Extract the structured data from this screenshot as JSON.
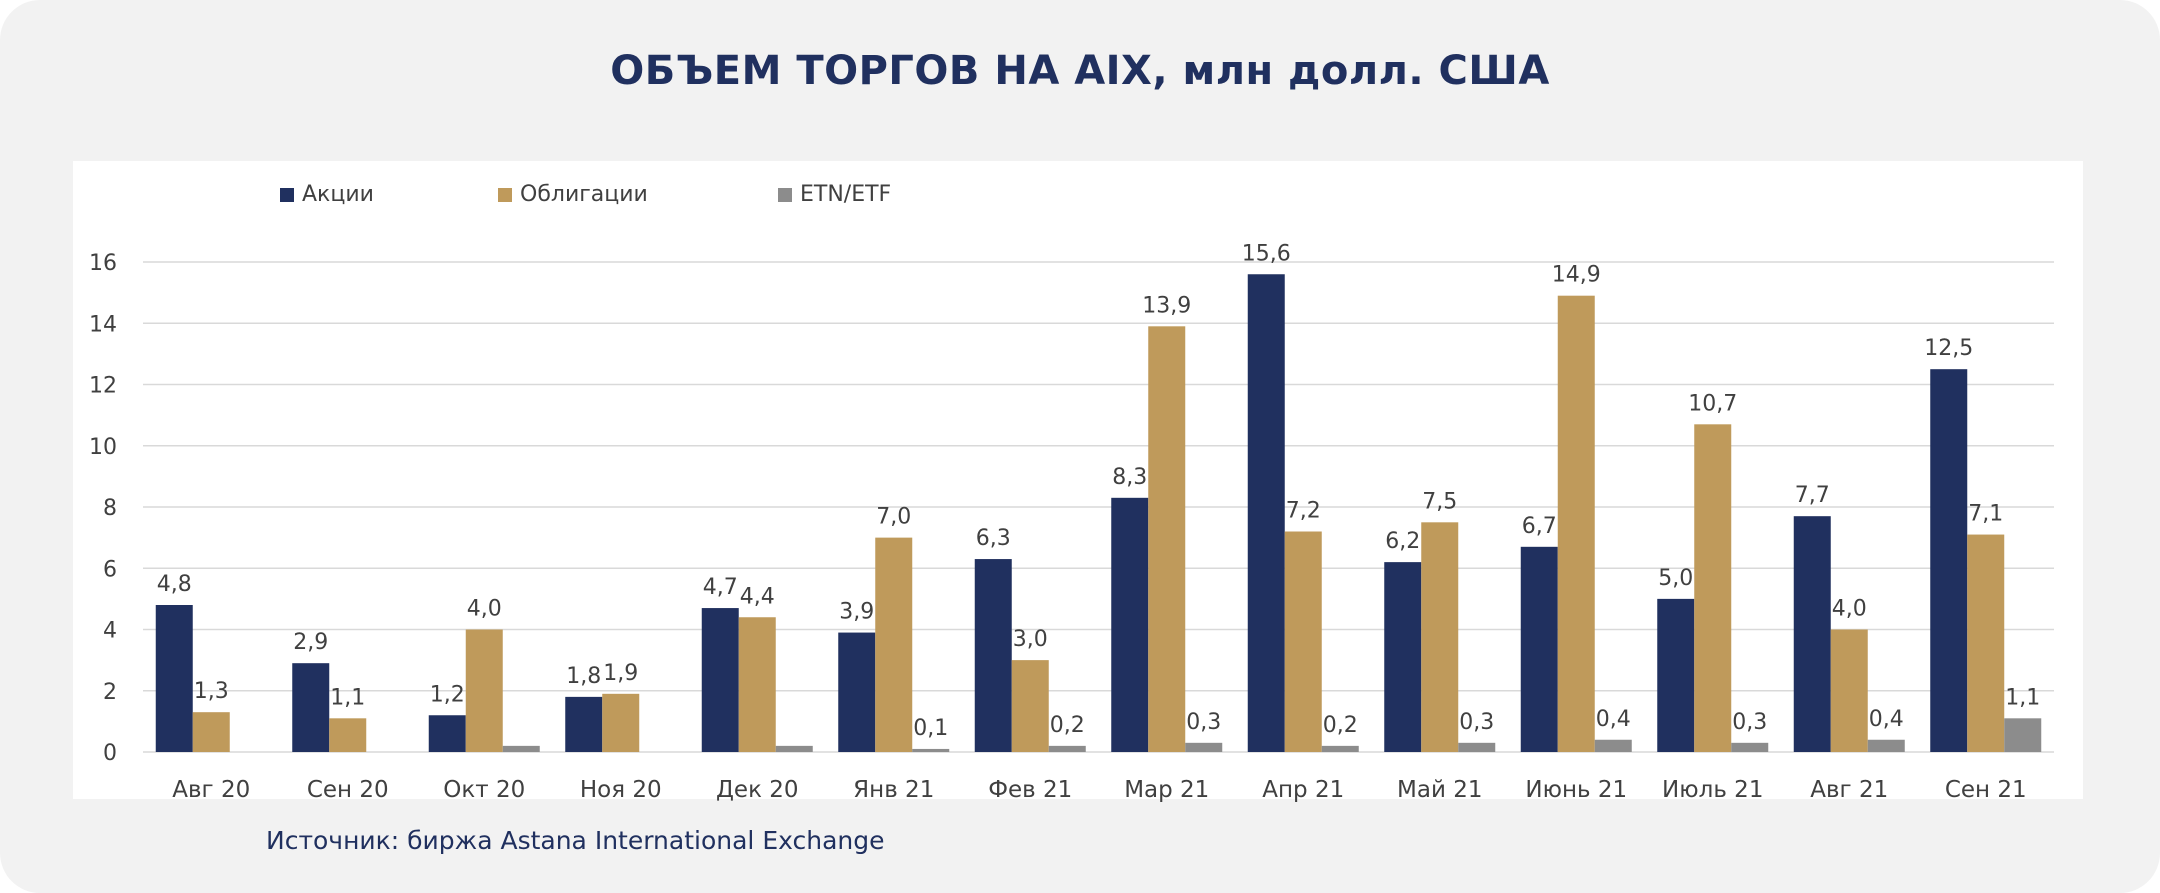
{
  "title": "ОБЪЕМ ТОРГОВ НА AIX,  млн долл. США",
  "source": "Источник: биржа Astana International Exchange",
  "colors": {
    "background": "#f2f2f2",
    "panel": "#ffffff",
    "title": "#20305f",
    "series_colors": [
      "#20305f",
      "#bf9a5b",
      "#8c8c8c"
    ],
    "grid": "#d9d9d9",
    "text": "#404040"
  },
  "chart_data": {
    "type": "bar",
    "categories": [
      "Авг 20",
      "Сен 20",
      "Окт 20",
      "Ноя 20",
      "Дек 20",
      "Янв 21",
      "Фев 21",
      "Мар 21",
      "Апр 21",
      "Май 21",
      "Июнь 21",
      "Июль 21",
      "Авг 21",
      "Сен 21"
    ],
    "series": [
      {
        "name": "Акции",
        "values": [
          4.8,
          2.9,
          1.2,
          1.8,
          4.7,
          3.9,
          6.3,
          8.3,
          15.6,
          6.2,
          6.7,
          5.0,
          7.7,
          12.5
        ],
        "labels": [
          "4,8",
          "2,9",
          "1,2",
          "1,8",
          "4,7",
          "3,9",
          "6,3",
          "8,3",
          "15,6",
          "6,2",
          "6,7",
          "5,0",
          "7,7",
          "12,5"
        ]
      },
      {
        "name": "Облигации",
        "values": [
          1.3,
          1.1,
          4.0,
          1.9,
          4.4,
          7.0,
          3.0,
          13.9,
          7.2,
          7.5,
          14.9,
          10.7,
          4.0,
          7.1
        ],
        "labels": [
          "1,3",
          "1,1",
          "4,0",
          "1,9",
          "4,4",
          "7,0",
          "3,0",
          "13,9",
          "7,2",
          "7,5",
          "14,9",
          "10,7",
          "4,0",
          "7,1"
        ]
      },
      {
        "name": "ETN/ETF",
        "values": [
          0,
          0,
          0.2,
          0,
          0.2,
          0.1,
          0.2,
          0.3,
          0.2,
          0.3,
          0.4,
          0.3,
          0.4,
          1.1
        ],
        "labels": [
          "",
          "",
          "",
          "",
          "",
          "0,1",
          "0,2",
          "0,3",
          "0,2",
          "0,3",
          "0,4",
          "0,3",
          "0,4",
          "1,1"
        ]
      }
    ],
    "ylim": [
      0,
      16
    ],
    "yticks": [
      0,
      2,
      4,
      6,
      8,
      10,
      12,
      14,
      16
    ],
    "grid": true,
    "legend_position": "top-left"
  }
}
